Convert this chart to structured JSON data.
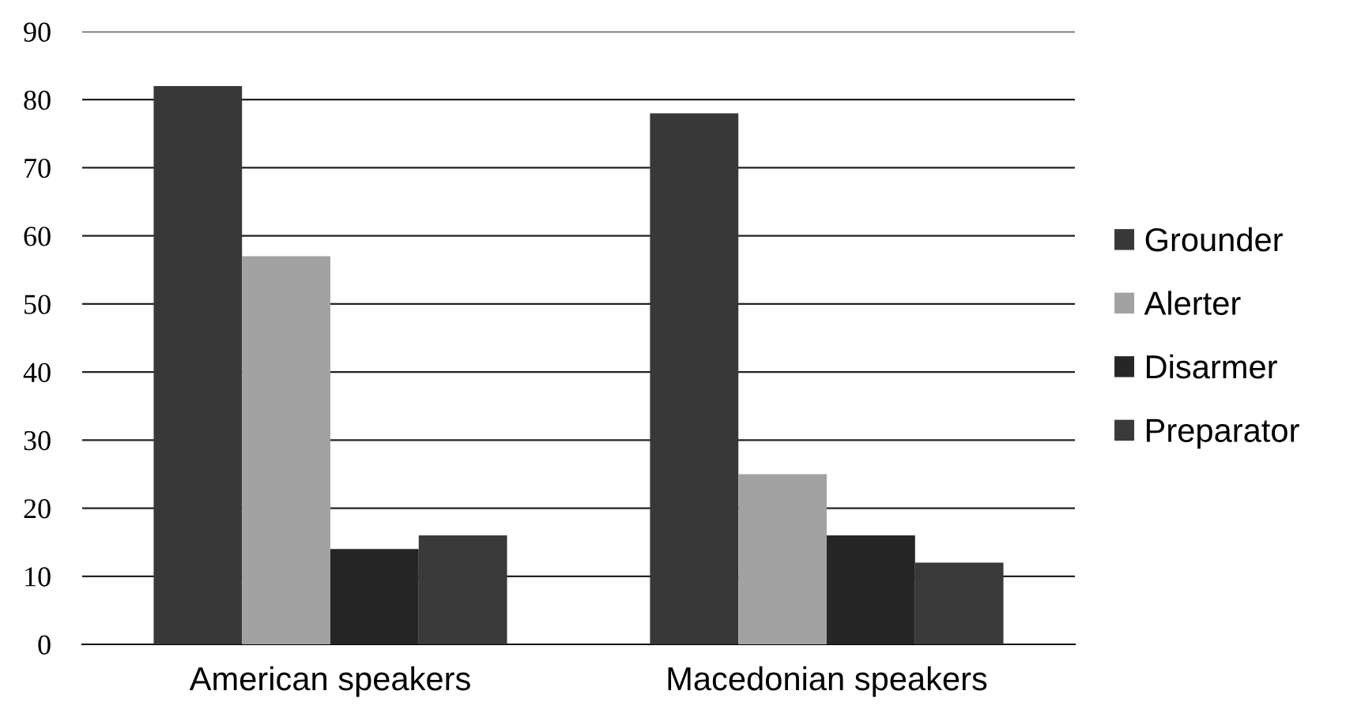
{
  "chart_data": {
    "type": "bar",
    "categories": [
      "American speakers",
      "Macedonian speakers"
    ],
    "series": [
      {
        "name": "Grounder",
        "color": "#383838",
        "values": [
          82,
          78
        ]
      },
      {
        "name": "Alerter",
        "color": "#a2a2a2",
        "values": [
          57,
          25
        ]
      },
      {
        "name": "Disarmer",
        "color": "#262626",
        "values": [
          14,
          16
        ]
      },
      {
        "name": "Preparator",
        "color": "#3a3a3a",
        "values": [
          16,
          12
        ]
      }
    ],
    "ylim": [
      0,
      90
    ],
    "yticks": [
      0,
      10,
      20,
      30,
      40,
      50,
      60,
      70,
      80,
      90
    ],
    "grid": "y",
    "legend": "right"
  }
}
